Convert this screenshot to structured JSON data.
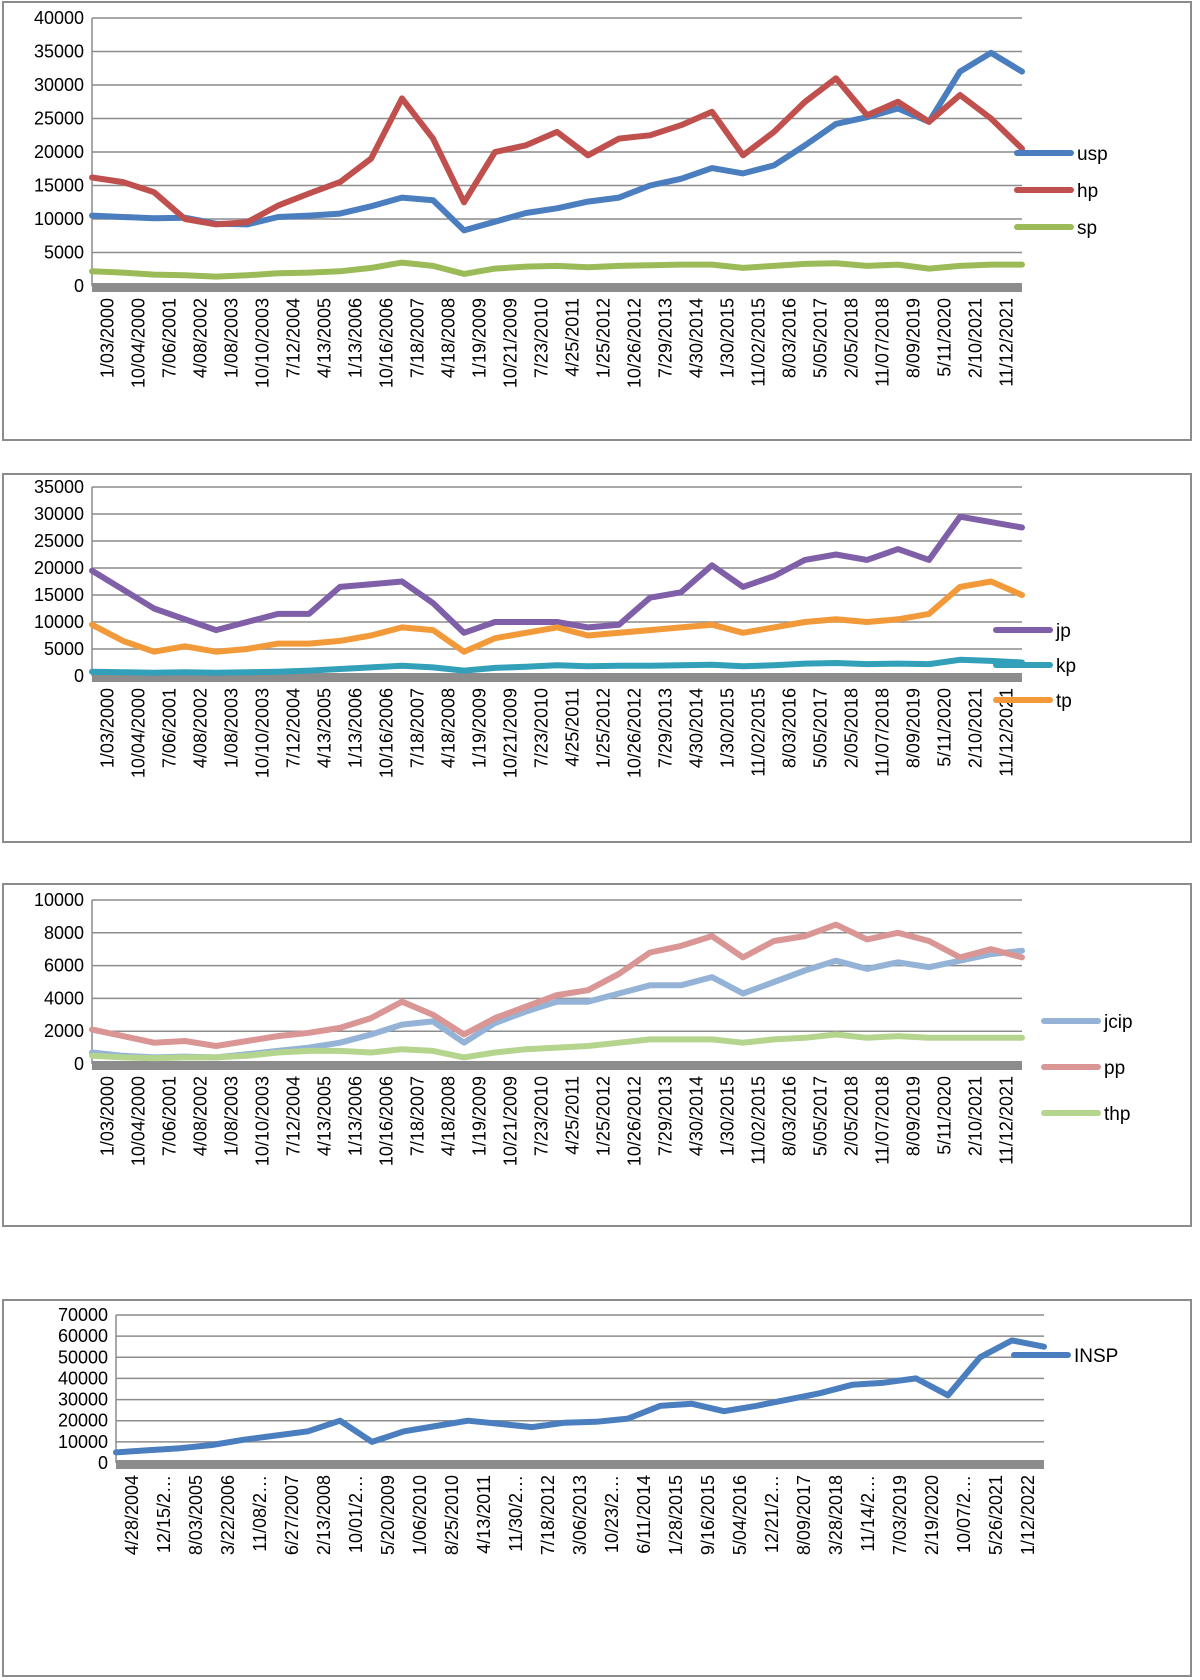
{
  "chart_data": [
    {
      "type": "line",
      "title": "",
      "xlabel": "",
      "ylabel": "",
      "ylim": [
        0,
        40000
      ],
      "ytick_step": 5000,
      "grid": true,
      "legend_position": "right",
      "x_ticks": [
        "1/03/2000",
        "10/04/2000",
        "7/06/2001",
        "4/08/2002",
        "1/08/2003",
        "10/10/2003",
        "7/12/2004",
        "4/13/2005",
        "1/13/2006",
        "10/16/2006",
        "7/18/2007",
        "4/18/2008",
        "1/19/2009",
        "10/21/2009",
        "7/23/2010",
        "4/25/2011",
        "1/25/2012",
        "10/26/2012",
        "7/29/2013",
        "4/30/2014",
        "1/30/2015",
        "11/02/2015",
        "8/03/2016",
        "5/05/2017",
        "2/05/2018",
        "11/07/2018",
        "8/09/2019",
        "5/11/2020",
        "2/10/2021",
        "11/12/2021"
      ],
      "series": [
        {
          "name": "usp",
          "color": "#4a7ebf",
          "values": [
            10500,
            10300,
            10100,
            10200,
            9300,
            9200,
            10300,
            10500,
            10800,
            11900,
            13200,
            12800,
            8300,
            9600,
            10900,
            11600,
            12600,
            13200,
            15000,
            16000,
            17600,
            16800,
            18000,
            21000,
            24200,
            25200,
            26500,
            24500,
            32000,
            34800,
            32000
          ]
        },
        {
          "name": "hp",
          "color": "#c0504d",
          "values": [
            16200,
            15500,
            14000,
            10000,
            9200,
            9500,
            12000,
            13800,
            15500,
            19000,
            28000,
            22000,
            12500,
            20000,
            21000,
            23000,
            19500,
            22000,
            22500,
            24000,
            26000,
            19500,
            23000,
            27500,
            31000,
            25500,
            27500,
            24500,
            28500,
            25000,
            20500
          ]
        },
        {
          "name": "sp",
          "color": "#9bbb59",
          "values": [
            2200,
            2000,
            1700,
            1600,
            1400,
            1600,
            1900,
            2000,
            2200,
            2700,
            3500,
            3000,
            1800,
            2600,
            2900,
            3000,
            2800,
            3000,
            3100,
            3200,
            3200,
            2700,
            3000,
            3300,
            3400,
            3000,
            3200,
            2600,
            3000,
            3200,
            3200
          ]
        }
      ]
    },
    {
      "type": "line",
      "title": "",
      "xlabel": "",
      "ylabel": "",
      "ylim": [
        0,
        35000
      ],
      "ytick_step": 5000,
      "grid": true,
      "legend_position": "right",
      "x_ticks": [
        "1/03/2000",
        "10/04/2000",
        "7/06/2001",
        "4/08/2002",
        "1/08/2003",
        "10/10/2003",
        "7/12/2004",
        "4/13/2005",
        "1/13/2006",
        "10/16/2006",
        "7/18/2007",
        "4/18/2008",
        "1/19/2009",
        "10/21/2009",
        "7/23/2010",
        "4/25/2011",
        "1/25/2012",
        "10/26/2012",
        "7/29/2013",
        "4/30/2014",
        "1/30/2015",
        "11/02/2015",
        "8/03/2016",
        "5/05/2017",
        "2/05/2018",
        "11/07/2018",
        "8/09/2019",
        "5/11/2020",
        "2/10/2021",
        "11/12/2021"
      ],
      "series": [
        {
          "name": "jp",
          "color": "#7f5fa8",
          "values": [
            19500,
            16000,
            12500,
            10500,
            8500,
            10000,
            11500,
            11500,
            16500,
            17000,
            17500,
            13500,
            8000,
            10000,
            10000,
            10000,
            9000,
            9500,
            14500,
            15500,
            20500,
            16500,
            18500,
            21500,
            22500,
            21500,
            23500,
            21500,
            29500,
            28500,
            27500
          ]
        },
        {
          "name": "kp",
          "color": "#31a0b8",
          "values": [
            800,
            700,
            600,
            700,
            600,
            700,
            800,
            1000,
            1300,
            1600,
            1900,
            1600,
            1000,
            1500,
            1700,
            2000,
            1800,
            1900,
            1900,
            2000,
            2100,
            1800,
            2000,
            2300,
            2400,
            2200,
            2300,
            2200,
            3000,
            2800,
            2500
          ]
        },
        {
          "name": "tp",
          "color": "#f29a3a",
          "values": [
            9500,
            6500,
            4500,
            5500,
            4500,
            5000,
            6000,
            6000,
            6500,
            7500,
            9000,
            8500,
            4500,
            7000,
            8000,
            9000,
            7500,
            8000,
            8500,
            9000,
            9500,
            8000,
            9000,
            10000,
            10500,
            10000,
            10500,
            11500,
            16500,
            17500,
            15000
          ]
        }
      ]
    },
    {
      "type": "line",
      "title": "",
      "xlabel": "",
      "ylabel": "",
      "ylim": [
        0,
        10000
      ],
      "ytick_step": 2000,
      "grid": true,
      "legend_position": "right",
      "x_ticks": [
        "1/03/2000",
        "10/04/2000",
        "7/06/2001",
        "4/08/2002",
        "1/08/2003",
        "10/10/2003",
        "7/12/2004",
        "4/13/2005",
        "1/13/2006",
        "10/16/2006",
        "7/18/2007",
        "4/18/2008",
        "1/19/2009",
        "10/21/2009",
        "7/23/2010",
        "4/25/2011",
        "1/25/2012",
        "10/26/2012",
        "7/29/2013",
        "4/30/2014",
        "1/30/2015",
        "11/02/2015",
        "8/03/2016",
        "5/05/2017",
        "2/05/2018",
        "11/07/2018",
        "8/09/2019",
        "5/11/2020",
        "2/10/2021",
        "11/12/2021"
      ],
      "series": [
        {
          "name": "jcip",
          "color": "#95b3d7",
          "values": [
            700,
            500,
            400,
            450,
            400,
            600,
            800,
            1000,
            1300,
            1800,
            2400,
            2600,
            1300,
            2500,
            3200,
            3800,
            3800,
            4300,
            4800,
            4800,
            5300,
            4300,
            5000,
            5700,
            6300,
            5800,
            6200,
            5900,
            6300,
            6700,
            6900
          ]
        },
        {
          "name": "pp",
          "color": "#d99694",
          "values": [
            2100,
            1700,
            1300,
            1400,
            1100,
            1400,
            1700,
            1900,
            2200,
            2800,
            3800,
            3000,
            1800,
            2800,
            3500,
            4200,
            4500,
            5500,
            6800,
            7200,
            7800,
            6500,
            7500,
            7800,
            8500,
            7600,
            8000,
            7500,
            6500,
            7000,
            6500
          ]
        },
        {
          "name": "thp",
          "color": "#b5d58f",
          "values": [
            500,
            400,
            350,
            400,
            400,
            500,
            700,
            800,
            800,
            700,
            900,
            800,
            400,
            700,
            900,
            1000,
            1100,
            1300,
            1500,
            1500,
            1500,
            1300,
            1500,
            1600,
            1800,
            1600,
            1700,
            1600,
            1600,
            1600,
            1600
          ]
        }
      ]
    },
    {
      "type": "line",
      "title": "",
      "xlabel": "",
      "ylabel": "",
      "ylim": [
        0,
        70000
      ],
      "ytick_step": 10000,
      "grid": true,
      "legend_position": "right",
      "x_ticks": [
        "4/28/2004",
        "12/15/2…",
        "8/03/2005",
        "3/22/2006",
        "11/08/2…",
        "6/27/2007",
        "2/13/2008",
        "10/01/2…",
        "5/20/2009",
        "1/06/2010",
        "8/25/2010",
        "4/13/2011",
        "11/30/2…",
        "7/18/2012",
        "3/06/2013",
        "10/23/2…",
        "6/11/2014",
        "1/28/2015",
        "9/16/2015",
        "5/04/2016",
        "12/21/2…",
        "8/09/2017",
        "3/28/2018",
        "11/14/2…",
        "7/03/2019",
        "2/19/2020",
        "10/07/2…",
        "5/26/2021",
        "1/12/2022"
      ],
      "series": [
        {
          "name": "INSP",
          "color": "#4a7ebf",
          "values": [
            5000,
            6000,
            7000,
            8500,
            11000,
            13000,
            15000,
            20000,
            10000,
            15000,
            17500,
            20000,
            18500,
            17000,
            19000,
            19500,
            21000,
            27000,
            28000,
            24500,
            27000,
            30000,
            33000,
            37000,
            38000,
            40000,
            32000,
            50000,
            58000,
            55000
          ]
        }
      ]
    }
  ]
}
